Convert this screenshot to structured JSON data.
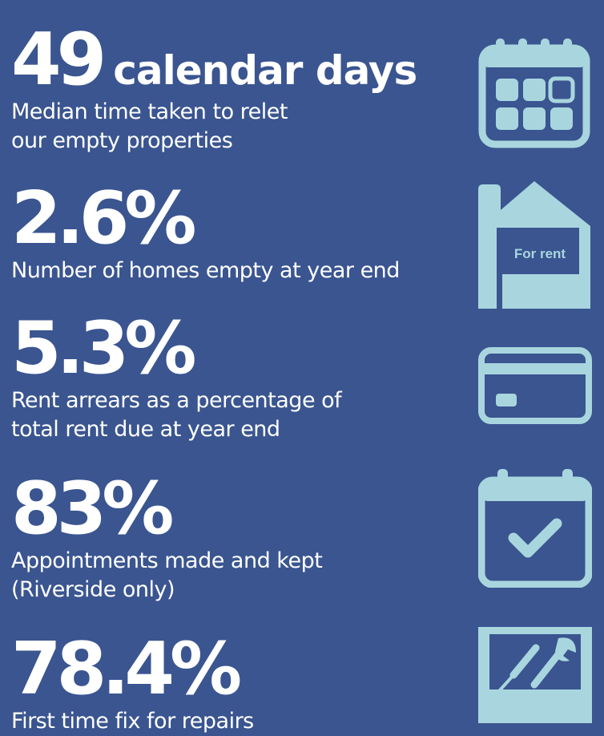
{
  "stats": [
    {
      "value": "49",
      "unit": "calendar days",
      "lines": [
        "Median time taken to relet",
        "our empty properties"
      ],
      "icon": "calendar-grid-icon"
    },
    {
      "value": "2.6%",
      "unit": "",
      "lines": [
        "Number of homes empty at year end"
      ],
      "icon": "for-rent-house-icon",
      "sign_text": "For rent"
    },
    {
      "value": "5.3%",
      "unit": "",
      "lines": [
        "Rent arrears as a percentage of",
        "total rent due at year end"
      ],
      "icon": "credit-card-icon"
    },
    {
      "value": "83%",
      "unit": "",
      "lines": [
        "Appointments made and kept",
        "(Riverside only)"
      ],
      "icon": "calendar-check-icon"
    },
    {
      "value": "78.4%",
      "unit": "",
      "lines": [
        "First time fix for repairs"
      ],
      "icon": "toolbox-icon"
    }
  ],
  "colors": {
    "background": "#3a5590",
    "icon": "#a9d6de",
    "text": "#ffffff"
  }
}
